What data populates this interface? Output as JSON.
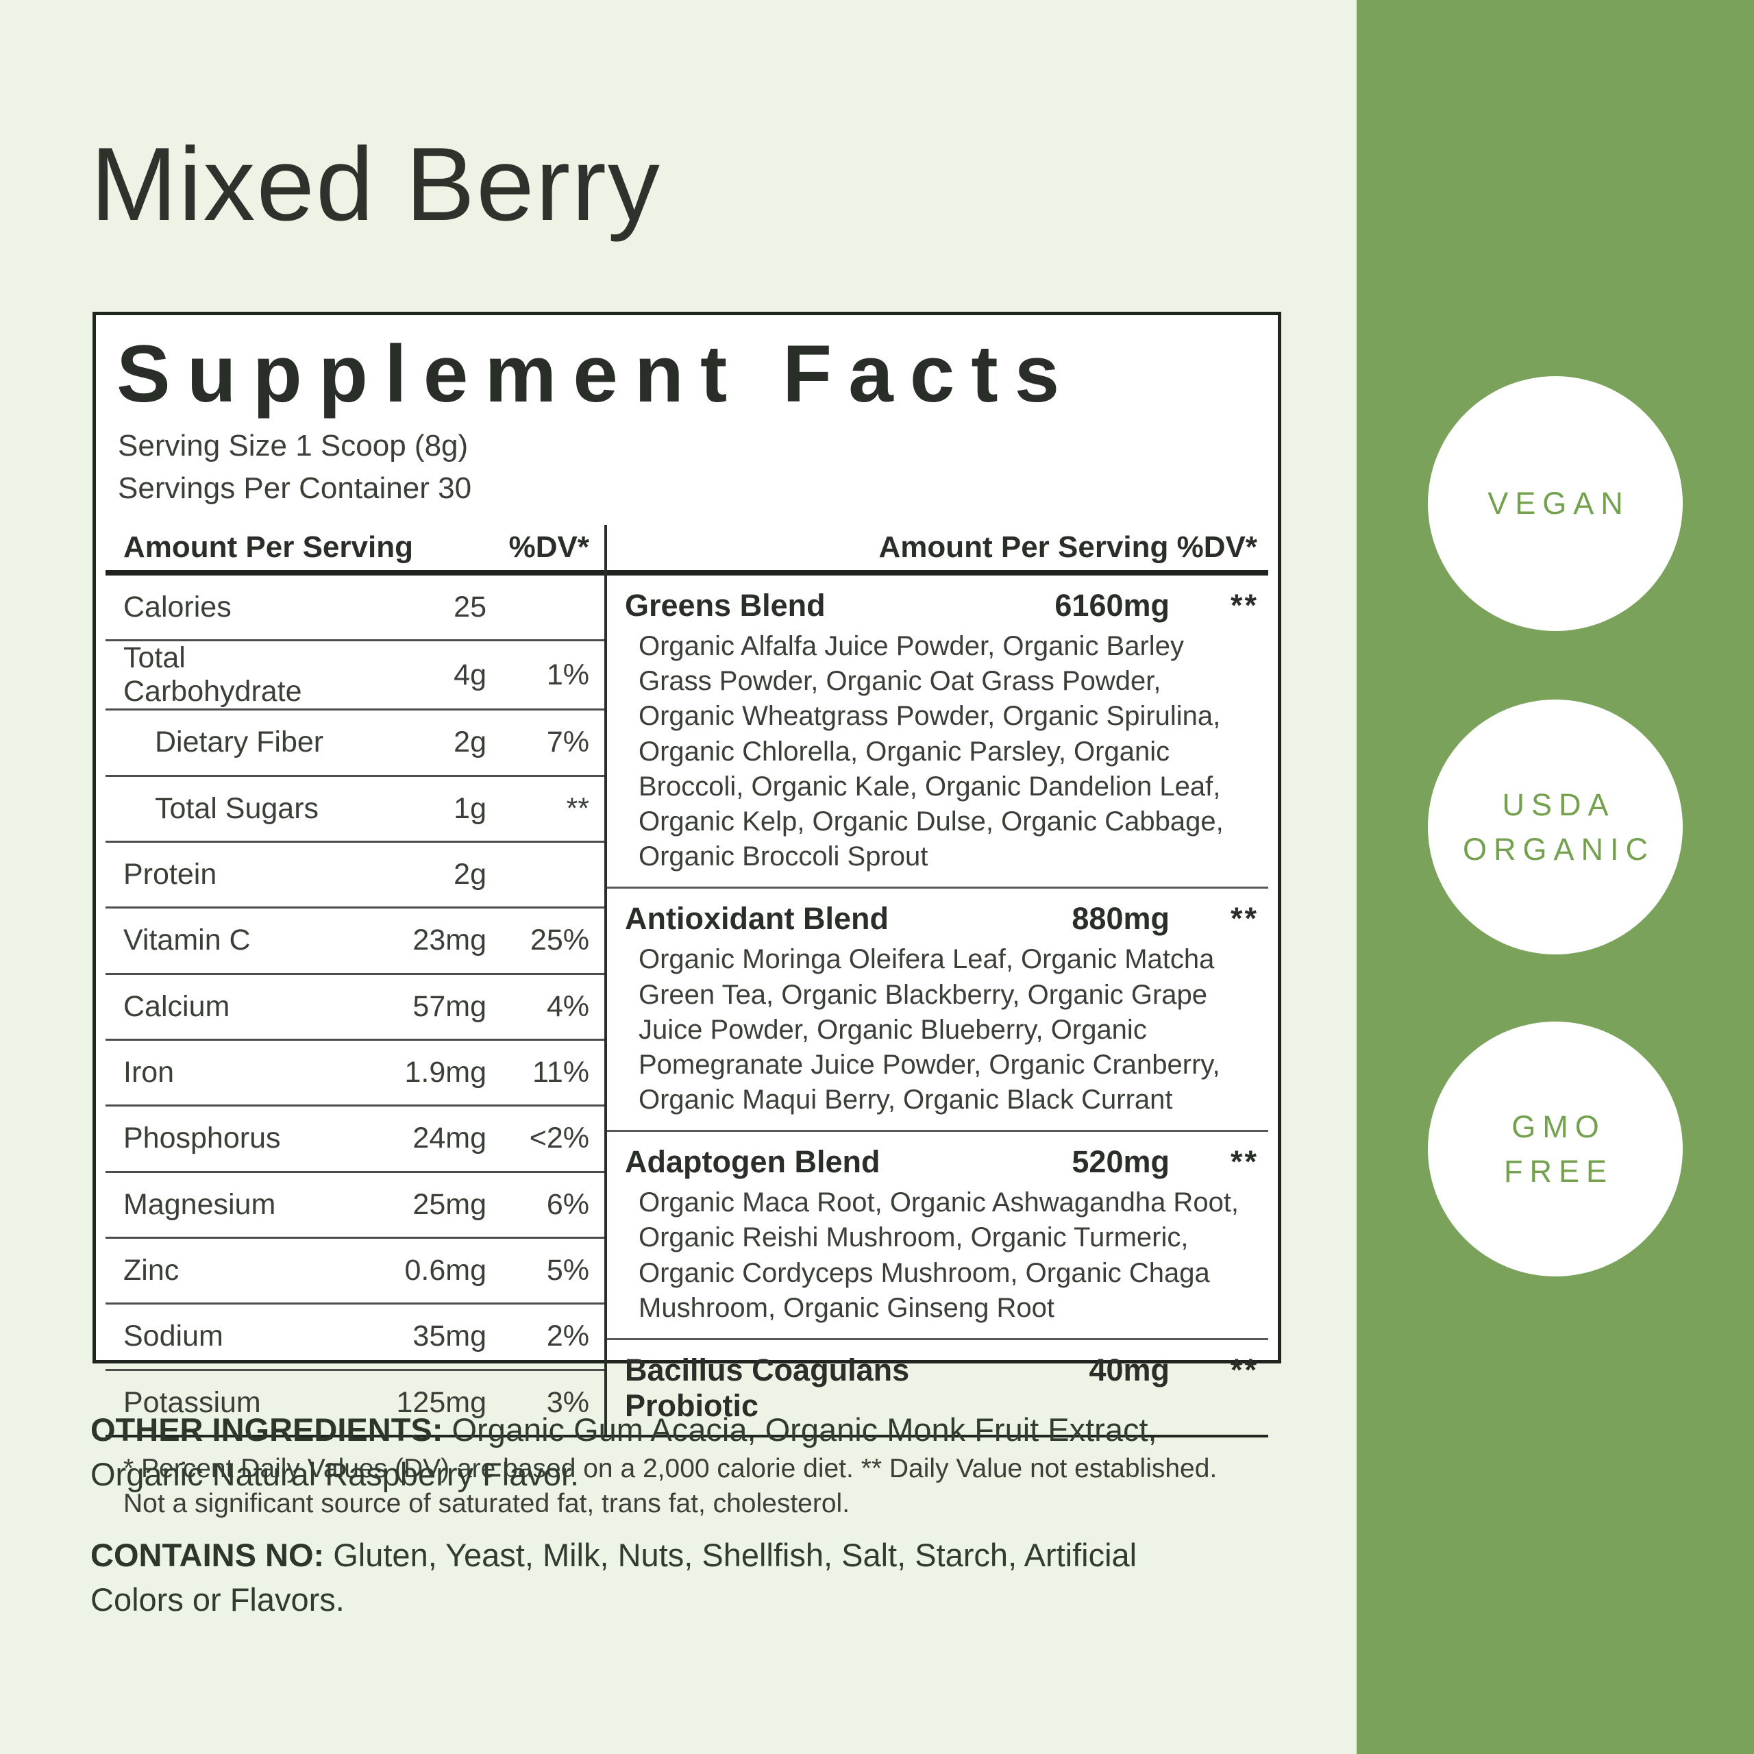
{
  "page": {
    "title": "Mixed Berry",
    "colors": {
      "page_background": "#edf3e5",
      "band_green": "#7ba25a",
      "badge_text_green": "#74a14e",
      "ink": "#2a2e29"
    },
    "badges": [
      {
        "label": "VEGAN"
      },
      {
        "label": "USDA\nORGANIC"
      },
      {
        "label": "GMO\nFREE"
      }
    ]
  },
  "panel": {
    "heading": "Supplement Facts",
    "serving_size": "Serving Size 1 Scoop (8g)",
    "servings_per_container": "Servings Per Container 30",
    "left_header": {
      "amount": "Amount Per Serving",
      "dv": "%DV*"
    },
    "right_header": "Amount Per Serving %DV*",
    "nutrients": [
      {
        "name": "Calories",
        "amount": "25",
        "dv": ""
      },
      {
        "name": "Total Carbohydrate",
        "amount": "4g",
        "dv": "1%"
      },
      {
        "name": "Dietary Fiber",
        "amount": "2g",
        "dv": "7%"
      },
      {
        "name": "Total Sugars",
        "amount": "1g",
        "dv": "**"
      },
      {
        "name": "Protein",
        "amount": "2g",
        "dv": ""
      },
      {
        "name": "Vitamin C",
        "amount": "23mg",
        "dv": "25%"
      },
      {
        "name": "Calcium",
        "amount": "57mg",
        "dv": "4%"
      },
      {
        "name": "Iron",
        "amount": "1.9mg",
        "dv": "11%"
      },
      {
        "name": "Phosphorus",
        "amount": "24mg",
        "dv": "<2%"
      },
      {
        "name": "Magnesium",
        "amount": "25mg",
        "dv": "6%"
      },
      {
        "name": "Zinc",
        "amount": "0.6mg",
        "dv": "5%"
      },
      {
        "name": "Sodium",
        "amount": "35mg",
        "dv": "2%"
      },
      {
        "name": "Potassium",
        "amount": "125mg",
        "dv": "3%"
      }
    ],
    "blends": [
      {
        "name": "Greens Blend",
        "amount": "6160mg",
        "dv": "**",
        "ingredients": "Organic Alfalfa Juice Powder, Organic Barley Grass Powder, Organic Oat Grass Powder, Organic Wheatgrass Powder, Organic Spirulina, Organic Chlorella, Organic Parsley, Organic Broccoli, Organic Kale, Organic Dandelion Leaf, Organic Kelp, Organic Dulse, Organic Cabbage, Organic Broccoli Sprout"
      },
      {
        "name": "Antioxidant Blend",
        "amount": "880mg",
        "dv": "**",
        "ingredients": "Organic Moringa Oleifera Leaf, Organic Matcha Green Tea, Organic Blackberry, Organic Grape Juice Powder, Organic Blueberry, Organic Pomegranate Juice Powder, Organic Cranberry, Organic Maqui Berry, Organic Black Currant"
      },
      {
        "name": "Adaptogen Blend",
        "amount": "520mg",
        "dv": "**",
        "ingredients": "Organic Maca Root, Organic Ashwagandha Root, Organic Reishi Mushroom, Organic Turmeric, Organic Cordyceps Mushroom, Organic Chaga Mushroom, Organic Ginseng Root"
      },
      {
        "name": "Bacillus Coagulans Probiotic",
        "amount": "40mg",
        "dv": "**",
        "ingredients": ""
      }
    ],
    "footnote": "* Percent Daily Values (DV) are based on a 2,000 calorie diet. ** Daily Value not established. Not a significant source of saturated fat, trans fat, cholesterol."
  },
  "below": {
    "other_ingredients_label": "OTHER INGREDIENTS:",
    "other_ingredients_text": " Organic Gum Acacia, Organic Monk Fruit Extract, Organic Natural Raspberry Flavor.",
    "contains_no_label": "CONTAINS NO:",
    "contains_no_text": " Gluten, Yeast, Milk, Nuts, Shellfish, Salt, Starch, Artificial Colors or Flavors."
  }
}
